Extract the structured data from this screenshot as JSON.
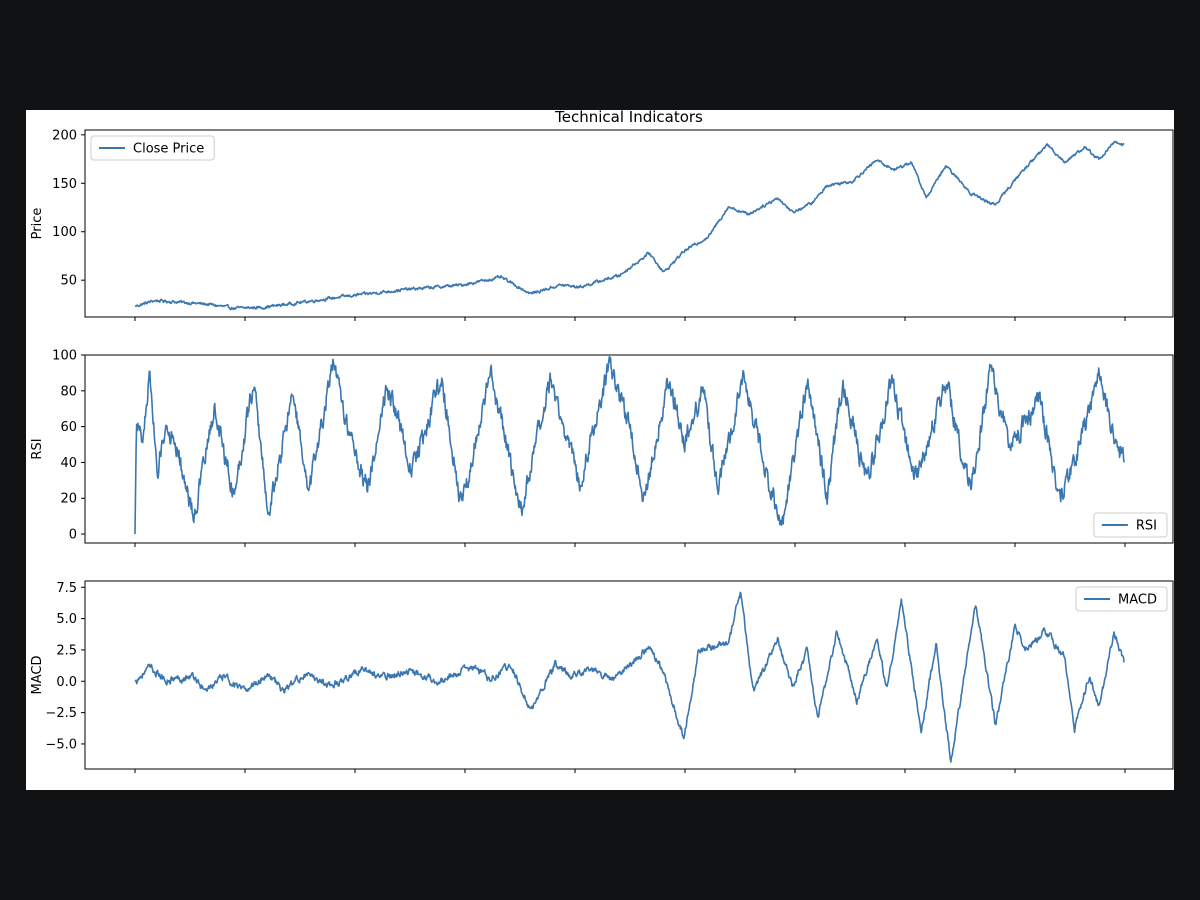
{
  "figure_title": "Technical Indicators",
  "line_color": "#3a76af",
  "background_color": "#111214",
  "chart_data": [
    {
      "type": "line",
      "id": "price",
      "title": "Technical Indicators",
      "ylabel": "Price",
      "xlabel": "",
      "legend": {
        "label": "Close Price",
        "placement": "upper-left"
      },
      "ylim": [
        12,
        205
      ],
      "yticks": [
        50,
        100,
        150,
        200
      ],
      "ytick_labels": [
        "50",
        "100",
        "150",
        "200"
      ],
      "n_points": 1800,
      "keyframes": [
        [
          0,
          23
        ],
        [
          40,
          29
        ],
        [
          100,
          27
        ],
        [
          150,
          25
        ],
        [
          200,
          21
        ],
        [
          260,
          22
        ],
        [
          320,
          26
        ],
        [
          420,
          33
        ],
        [
          540,
          40
        ],
        [
          660,
          45
        ],
        [
          740,
          53
        ],
        [
          800,
          36
        ],
        [
          860,
          45
        ],
        [
          900,
          43
        ],
        [
          980,
          55
        ],
        [
          1040,
          78
        ],
        [
          1070,
          58
        ],
        [
          1110,
          80
        ],
        [
          1160,
          95
        ],
        [
          1200,
          126
        ],
        [
          1240,
          118
        ],
        [
          1300,
          135
        ],
        [
          1330,
          120
        ],
        [
          1370,
          130
        ],
        [
          1400,
          148
        ],
        [
          1450,
          152
        ],
        [
          1500,
          174
        ],
        [
          1535,
          164
        ],
        [
          1570,
          172
        ],
        [
          1600,
          135
        ],
        [
          1640,
          168
        ],
        [
          1690,
          140
        ],
        [
          1720,
          132
        ],
        [
          1740,
          128
        ],
        [
          1790,
          160
        ],
        [
          1845,
          190
        ],
        [
          1880,
          172
        ],
        [
          1920,
          187
        ],
        [
          1950,
          175
        ],
        [
          1980,
          192
        ],
        [
          2000,
          190
        ]
      ],
      "noise_amplitude": 2.4
    },
    {
      "type": "line",
      "id": "rsi",
      "ylabel": "RSI",
      "xlabel": "",
      "legend": {
        "label": "RSI",
        "placement": "lower-right"
      },
      "ylim": [
        -5,
        100
      ],
      "yticks": [
        0,
        20,
        40,
        60,
        80,
        100
      ],
      "ytick_labels": [
        "0",
        "20",
        "40",
        "60",
        "80",
        "100"
      ],
      "n_points": 1800,
      "keyframes": [
        [
          0,
          0
        ],
        [
          3,
          65
        ],
        [
          15,
          50
        ],
        [
          30,
          92
        ],
        [
          45,
          30
        ],
        [
          60,
          60
        ],
        [
          80,
          55
        ],
        [
          100,
          30
        ],
        [
          120,
          10
        ],
        [
          160,
          70
        ],
        [
          200,
          22
        ],
        [
          240,
          85
        ],
        [
          270,
          10
        ],
        [
          320,
          80
        ],
        [
          350,
          20
        ],
        [
          400,
          95
        ],
        [
          430,
          60
        ],
        [
          470,
          25
        ],
        [
          510,
          85
        ],
        [
          560,
          35
        ],
        [
          620,
          88
        ],
        [
          660,
          15
        ],
        [
          720,
          90
        ],
        [
          780,
          12
        ],
        [
          840,
          85
        ],
        [
          900,
          30
        ],
        [
          960,
          95
        ],
        [
          1000,
          60
        ],
        [
          1030,
          20
        ],
        [
          1080,
          88
        ],
        [
          1110,
          50
        ],
        [
          1150,
          80
        ],
        [
          1180,
          25
        ],
        [
          1230,
          90
        ],
        [
          1280,
          30
        ],
        [
          1310,
          5
        ],
        [
          1360,
          88
        ],
        [
          1400,
          20
        ],
        [
          1430,
          85
        ],
        [
          1480,
          30
        ],
        [
          1530,
          85
        ],
        [
          1580,
          30
        ],
        [
          1640,
          85
        ],
        [
          1690,
          25
        ],
        [
          1730,
          92
        ],
        [
          1770,
          50
        ],
        [
          1830,
          75
        ],
        [
          1870,
          20
        ],
        [
          1900,
          40
        ],
        [
          1950,
          88
        ],
        [
          1980,
          55
        ],
        [
          2000,
          40
        ]
      ],
      "noise_amplitude": 9
    },
    {
      "type": "line",
      "id": "macd",
      "ylabel": "MACD",
      "xlabel": "",
      "legend": {
        "label": "MACD",
        "placement": "upper-right"
      },
      "ylim": [
        -7,
        8
      ],
      "yticks": [
        -5.0,
        -2.5,
        0.0,
        2.5,
        5.0,
        7.5
      ],
      "ytick_labels": [
        "−5.0",
        "−2.5",
        "0.0",
        "2.5",
        "5.0",
        "7.5"
      ],
      "n_points": 1800,
      "keyframes": [
        [
          0,
          0
        ],
        [
          30,
          1.1
        ],
        [
          60,
          0.1
        ],
        [
          120,
          0.4
        ],
        [
          140,
          -0.8
        ],
        [
          180,
          0.4
        ],
        [
          220,
          -0.8
        ],
        [
          270,
          0.6
        ],
        [
          300,
          -0.8
        ],
        [
          340,
          0.5
        ],
        [
          400,
          -0.3
        ],
        [
          460,
          1.0
        ],
        [
          500,
          0.3
        ],
        [
          560,
          0.8
        ],
        [
          620,
          0.0
        ],
        [
          680,
          1.2
        ],
        [
          720,
          0.2
        ],
        [
          760,
          1.4
        ],
        [
          800,
          -2.5
        ],
        [
          850,
          1.4
        ],
        [
          880,
          0.5
        ],
        [
          920,
          0.9
        ],
        [
          970,
          0.2
        ],
        [
          1040,
          2.8
        ],
        [
          1070,
          0.5
        ],
        [
          1110,
          -4.5
        ],
        [
          1140,
          2.5
        ],
        [
          1200,
          3.0
        ],
        [
          1225,
          7.2
        ],
        [
          1250,
          -1.0
        ],
        [
          1300,
          3.5
        ],
        [
          1330,
          -0.5
        ],
        [
          1360,
          2.5
        ],
        [
          1380,
          -3.0
        ],
        [
          1420,
          4.0
        ],
        [
          1460,
          -1.5
        ],
        [
          1500,
          3.5
        ],
        [
          1520,
          -0.5
        ],
        [
          1550,
          6.3
        ],
        [
          1590,
          -4.0
        ],
        [
          1620,
          3.0
        ],
        [
          1650,
          -6.5
        ],
        [
          1700,
          6.3
        ],
        [
          1740,
          -3.5
        ],
        [
          1780,
          4.5
        ],
        [
          1800,
          2.5
        ],
        [
          1840,
          4.0
        ],
        [
          1880,
          2.0
        ],
        [
          1900,
          -3.8
        ],
        [
          1930,
          0.5
        ],
        [
          1950,
          -2.0
        ],
        [
          1980,
          4.0
        ],
        [
          2000,
          1.5
        ]
      ],
      "noise_amplitude": 0.45
    }
  ]
}
